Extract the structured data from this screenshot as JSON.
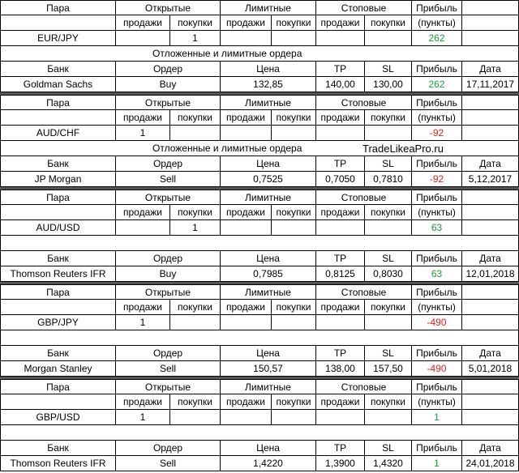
{
  "blocks": [
    {
      "header": [
        "Пара",
        "Открытые",
        "Лимитные",
        "Стоповые",
        "Прибыль"
      ],
      "subheader": [
        "продажи",
        "покупки",
        "продажи",
        "покупки",
        "продажи",
        "покупки",
        "(пункты)"
      ],
      "pair_row": [
        "EUR/JPY",
        null,
        1,
        null,
        null,
        null,
        null,
        262
      ],
      "caption": [
        "Отложенные и лимитные ордера"
      ],
      "bank_header": [
        "Банк",
        "Ордер",
        "Цена",
        "TP",
        "SL",
        "Прибыль",
        "Дата"
      ],
      "bank_row": [
        "Goldman Sachs",
        "Buy",
        "132,85",
        "140,00",
        "130,00",
        262,
        "17,11,2017"
      ]
    },
    {
      "header": [
        "Пара",
        "Открытые",
        "Лимитные",
        "Стоповые",
        "Прибыль"
      ],
      "subheader": [
        "продажи",
        "покупки",
        "продажи",
        "покупки",
        "продажи",
        "покупки",
        "(пункты)"
      ],
      "pair_row": [
        "AUD/CHF",
        1,
        null,
        null,
        null,
        null,
        null,
        -92
      ],
      "caption": [
        "Отложенные и лимитные ордера",
        "TradeLikeaPro.ru"
      ],
      "bank_header": [
        "Банк",
        "Ордер",
        "Цена",
        "TP",
        "SL",
        "Прибыль",
        "Дата"
      ],
      "bank_row": [
        "JP Morgan",
        "Sell",
        "0,7525",
        "0,7050",
        "0,7810",
        -92,
        "5,12,2017"
      ]
    },
    {
      "header": [
        "Пара",
        "Открытые",
        "Лимитные",
        "Стоповые",
        "Прибыль"
      ],
      "subheader": [
        "продажи",
        "покупки",
        "продажи",
        "покупки",
        "продажи",
        "покупки",
        "(пункты)"
      ],
      "pair_row": [
        "AUD/USD",
        null,
        1,
        null,
        null,
        null,
        null,
        63
      ],
      "bank_header": [
        "Банк",
        "Ордер",
        "Цена",
        "TP",
        "SL",
        "Прибыль",
        "Дата"
      ],
      "bank_row": [
        "Thomson Reuters IFR",
        "Buy",
        "0,7985",
        "0,8125",
        "0,8030",
        63,
        "12,01,2018"
      ]
    },
    {
      "header": [
        "Пара",
        "Открытые",
        "Лимитные",
        "Стоповые",
        "Прибыль"
      ],
      "subheader": [
        "продажи",
        "покупки",
        "продажи",
        "покупки",
        "продажи",
        "покупки",
        "(пункты)"
      ],
      "pair_row": [
        "GBP/JPY",
        1,
        null,
        null,
        null,
        null,
        null,
        -490
      ],
      "bank_header": [
        "Банк",
        "Ордер",
        "Цена",
        "TP",
        "SL",
        "Прибыль",
        "Дата"
      ],
      "bank_row": [
        "Morgan Stanley",
        "Sell",
        "150,57",
        "138,00",
        "157,50",
        -490,
        "5,01,2018"
      ]
    },
    {
      "header": [
        "Пара",
        "Открытые",
        "Лимитные",
        "Стоповые",
        "Прибыль"
      ],
      "subheader": [
        "продажи",
        "покупки",
        "продажи",
        "покупки",
        "продажи",
        "покупки",
        "(пункты)"
      ],
      "pair_row": [
        "GBP/USD",
        1,
        null,
        null,
        null,
        null,
        null,
        1
      ],
      "bank_header": [
        "Банк",
        "Ордер",
        "Цена",
        "TP",
        "SL",
        "Прибыль",
        "Дата"
      ],
      "bank_row": [
        "Thomson Reuters IFR",
        "Sell",
        "1,4220",
        "1,3900",
        "1,4320",
        1,
        "24,01,2018"
      ]
    }
  ]
}
